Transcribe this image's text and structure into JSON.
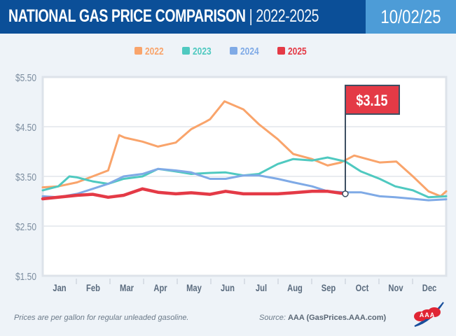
{
  "header": {
    "title_bold": "NATIONAL GAS PRICE COMPARISON",
    "title_range": "| 2022-2025",
    "date": "10/02/25"
  },
  "footer": {
    "note": "Prices are per gallon for regular unleaded gasoline.",
    "source_label": "Source:",
    "source_value": "AAA (GasPrices.AAA.com)"
  },
  "logo": {
    "text": "AAA"
  },
  "chart_data": {
    "type": "line",
    "title": "NATIONAL GAS PRICE COMPARISON | 2022-2025",
    "xlabel": "",
    "ylabel": "",
    "ylim": [
      1.5,
      5.5
    ],
    "yticks": [
      1.5,
      2.5,
      3.5,
      4.5,
      5.5
    ],
    "ytick_labels": [
      "$1.50",
      "$2.50",
      "$3.50",
      "$4.50",
      "$5.50"
    ],
    "xlim": [
      1,
      365
    ],
    "x_unit": "day of year",
    "categories": [
      "Jan",
      "Feb",
      "Mar",
      "Apr",
      "May",
      "Jun",
      "Jul",
      "Aug",
      "Sep",
      "Oct",
      "Nov",
      "Dec"
    ],
    "grid": true,
    "legend_placement": "top-center",
    "annotation": {
      "label": "$3.15",
      "x": 274,
      "y": 3.15
    },
    "series": [
      {
        "name": "2022",
        "color": "#f9a46b",
        "x": [
          1,
          15,
          32,
          46,
          60,
          70,
          75,
          91,
          105,
          121,
          135,
          148,
          152,
          165,
          182,
          196,
          213,
          227,
          244,
          258,
          270,
          282,
          305,
          320,
          335,
          349,
          360,
          365
        ],
        "y": [
          3.28,
          3.3,
          3.38,
          3.5,
          3.62,
          4.33,
          4.28,
          4.2,
          4.1,
          4.18,
          4.45,
          4.6,
          4.65,
          5.01,
          4.85,
          4.55,
          4.25,
          3.95,
          3.85,
          3.72,
          3.78,
          3.92,
          3.78,
          3.8,
          3.5,
          3.2,
          3.1,
          3.2
        ]
      },
      {
        "name": "2023",
        "color": "#4fc9c0",
        "x": [
          1,
          15,
          25,
          32,
          46,
          60,
          74,
          91,
          105,
          121,
          135,
          152,
          166,
          182,
          196,
          213,
          227,
          244,
          258,
          274,
          288,
          305,
          319,
          335,
          349,
          365
        ],
        "y": [
          3.22,
          3.3,
          3.5,
          3.48,
          3.4,
          3.35,
          3.45,
          3.5,
          3.65,
          3.6,
          3.55,
          3.57,
          3.58,
          3.52,
          3.55,
          3.75,
          3.85,
          3.82,
          3.88,
          3.8,
          3.6,
          3.45,
          3.3,
          3.22,
          3.08,
          3.1
        ]
      },
      {
        "name": "2024",
        "color": "#7faae6",
        "x": [
          1,
          15,
          32,
          46,
          60,
          74,
          91,
          105,
          121,
          135,
          152,
          166,
          182,
          196,
          213,
          227,
          244,
          258,
          274,
          288,
          305,
          319,
          335,
          349,
          365
        ],
        "y": [
          3.1,
          3.08,
          3.15,
          3.25,
          3.35,
          3.5,
          3.55,
          3.65,
          3.62,
          3.58,
          3.45,
          3.45,
          3.52,
          3.52,
          3.45,
          3.38,
          3.3,
          3.2,
          3.18,
          3.18,
          3.1,
          3.08,
          3.05,
          3.02,
          3.04
        ]
      },
      {
        "name": "2025",
        "color": "#e43a46",
        "x": [
          1,
          15,
          32,
          46,
          60,
          74,
          91,
          105,
          121,
          135,
          152,
          166,
          182,
          196,
          213,
          227,
          244,
          258,
          274
        ],
        "y": [
          3.05,
          3.08,
          3.12,
          3.14,
          3.08,
          3.12,
          3.25,
          3.18,
          3.15,
          3.17,
          3.14,
          3.2,
          3.15,
          3.15,
          3.15,
          3.17,
          3.2,
          3.2,
          3.15
        ]
      }
    ]
  }
}
